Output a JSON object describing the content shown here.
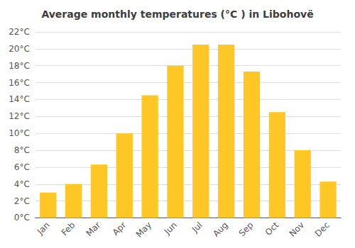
{
  "chart_data": {
    "type": "bar",
    "title": "Average monthly temperatures (°C ) in Libohovë",
    "categories": [
      "Jan",
      "Feb",
      "Mar",
      "Apr",
      "May",
      "Jun",
      "Jul",
      "Aug",
      "Sep",
      "Oct",
      "Nov",
      "Dec"
    ],
    "values": [
      3.0,
      4.0,
      6.3,
      10.0,
      14.5,
      18.0,
      20.5,
      20.5,
      17.3,
      12.5,
      8.0,
      4.3
    ],
    "color": "#FFC726",
    "ylim": [
      0,
      22
    ],
    "yticks": [
      {
        "value": 0,
        "label": "0°C"
      },
      {
        "value": 2,
        "label": "2°C"
      },
      {
        "value": 4,
        "label": "4°C"
      },
      {
        "value": 6,
        "label": "6°C"
      },
      {
        "value": 8,
        "label": "8°C"
      },
      {
        "value": 10,
        "label": "10°C"
      },
      {
        "value": 12,
        "label": "12°C"
      },
      {
        "value": 14,
        "label": "14°C"
      },
      {
        "value": 16,
        "label": "16°C"
      },
      {
        "value": 18,
        "label": "18°C"
      },
      {
        "value": 20,
        "label": "20°C"
      },
      {
        "value": 22,
        "label": "22°C"
      }
    ],
    "grid": true
  }
}
